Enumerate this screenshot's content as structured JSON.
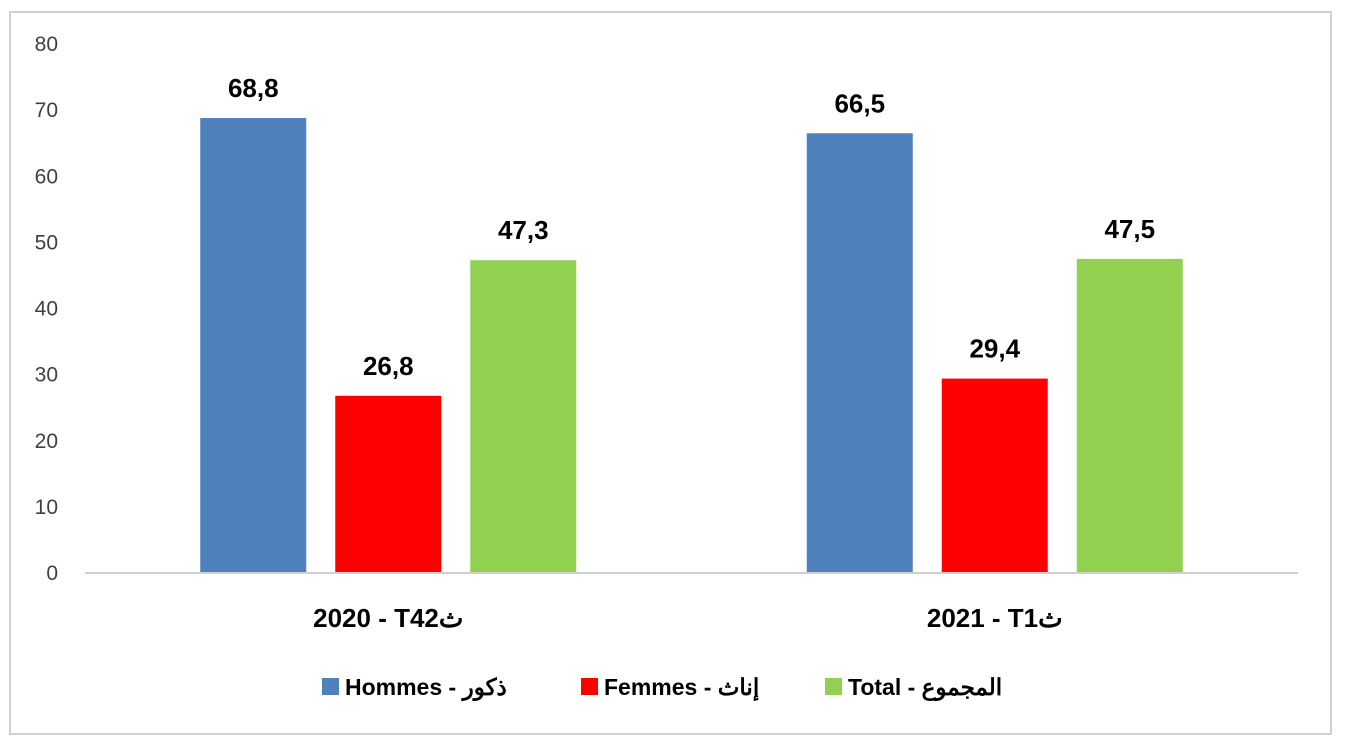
{
  "chart_data": {
    "type": "bar",
    "categories": [
      "2020 - T42ث",
      "2021 - T1ث"
    ],
    "series": [
      {
        "name": "Hommes - ذكور",
        "color": "#4f81bd",
        "values": [
          68.8,
          66.5
        ],
        "labels": [
          "68,8",
          "66,5"
        ]
      },
      {
        "name": "Femmes - إناث",
        "color": "#ff0000",
        "values": [
          26.8,
          29.4
        ],
        "labels": [
          "26,8",
          "29,4"
        ]
      },
      {
        "name": "Total - المجموع",
        "color": "#92d050",
        "values": [
          47.3,
          47.5
        ],
        "labels": [
          "47,3",
          "47,5"
        ]
      }
    ],
    "yticks": [
      "0",
      "10",
      "20",
      "30",
      "40",
      "50",
      "60",
      "70",
      "80"
    ],
    "ylim": [
      0,
      80
    ],
    "grid": false,
    "legend_position": "bottom"
  }
}
